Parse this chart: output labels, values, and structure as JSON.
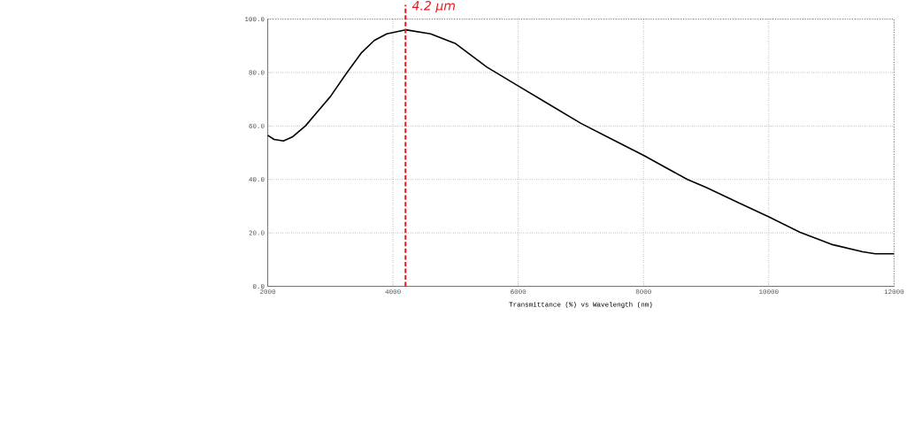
{
  "chart_data": {
    "type": "line",
    "xlabel": "Transmittance (%)  vs  Wavelength (nm)",
    "x": [
      2000,
      2100,
      2250,
      2400,
      2600,
      2800,
      3000,
      3250,
      3500,
      3700,
      3900,
      4200,
      4600,
      5000,
      5500,
      6000,
      6500,
      7000,
      7500,
      8000,
      8700,
      9000,
      9500,
      10000,
      10500,
      11000,
      11500,
      11700,
      12000
    ],
    "series": [
      {
        "color": "#000000",
        "values": [
          56.5,
          55,
          54.4,
          56,
          60,
          65.5,
          71,
          79.5,
          87.5,
          92,
          94.5,
          96,
          94.5,
          90.8,
          82,
          75,
          68,
          61,
          55,
          49,
          40,
          37,
          31.5,
          26,
          20.2,
          15.7,
          12.9,
          12.2,
          12.2
        ]
      }
    ],
    "xlim": [
      2000,
      12000
    ],
    "ylim": [
      0,
      100
    ],
    "xticks": [
      2000,
      4000,
      6000,
      8000,
      10000,
      12000
    ],
    "yticks": [
      {
        "value": 0,
        "label": "0.0"
      },
      {
        "value": 20,
        "label": "20.0"
      },
      {
        "value": 40,
        "label": "40.0"
      },
      {
        "value": 60,
        "label": "60.0"
      },
      {
        "value": 80,
        "label": "80.0"
      },
      {
        "value": 100,
        "label": "100.0"
      }
    ],
    "grid": true,
    "line_style": "solid",
    "marker": "none",
    "ref_lines": [
      {
        "axis": "x",
        "value": 4200,
        "label": "4.2 µm",
        "color": "#e31a1c",
        "line_style": "dashed"
      }
    ]
  }
}
